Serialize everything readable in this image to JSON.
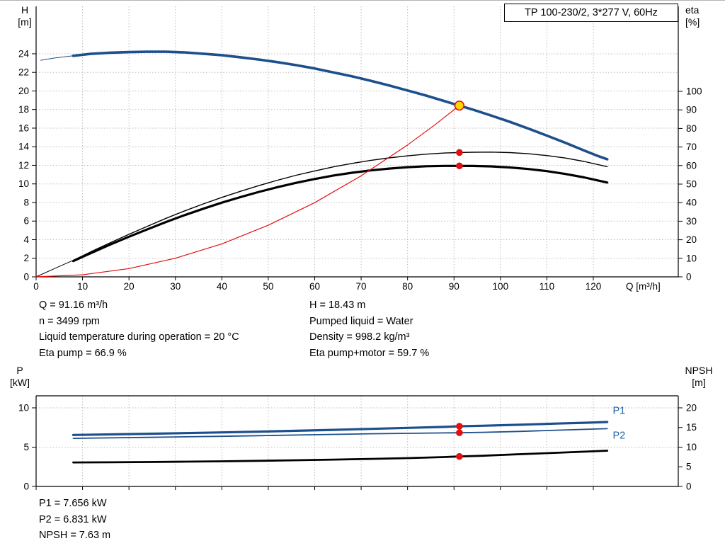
{
  "title": "TP 100-230/2, 3*277 V, 60Hz",
  "info": {
    "left": [
      "Q = 91.16 m³/h",
      "n = 3499 rpm",
      "Liquid temperature during operation = 20 °C",
      "Eta pump = 66.9 %"
    ],
    "right": [
      "H = 18.43 m",
      "Pumped liquid = Water",
      "Density = 998.2 kg/m³",
      "Eta pump+motor = 59.7 %"
    ],
    "bottom": [
      "P1 = 7.656 kW",
      "P2 = 6.831 kW",
      "NPSH = 7.63 m"
    ]
  },
  "colors": {
    "curve_blue": "#1c4f8c",
    "curve_black": "#000000",
    "curve_red": "#e01010",
    "marker_yellow": "#ffd500",
    "grid": "#bdbdbd",
    "axis": "#000000",
    "label_blue": "#2565a8"
  },
  "chart_data": [
    {
      "type": "line",
      "title": "TP 100-230/2, 3*277 V, 60Hz",
      "x_axis": {
        "label": "Q [m³/h]",
        "min": 0,
        "max": 138.3,
        "ticks": [
          0,
          10,
          20,
          30,
          40,
          50,
          60,
          70,
          80,
          90,
          100,
          110,
          120
        ],
        "show_tick_labels": true,
        "grid": true
      },
      "y_left": {
        "name": "H",
        "unit": "[m]",
        "min": 0,
        "max": 29.1,
        "ticks": [
          0,
          2,
          4,
          6,
          8,
          10,
          12,
          14,
          16,
          18,
          20,
          22,
          24
        ],
        "grid": true
      },
      "y_right": {
        "name": "eta",
        "unit": "[%]",
        "min": 0,
        "max": 145.8,
        "ticks": [
          0,
          10,
          20,
          30,
          40,
          50,
          60,
          70,
          80,
          90,
          100
        ]
      },
      "operating_point": {
        "Q": 91.16,
        "H": 18.43,
        "eta_pump": 66.9,
        "eta_pump_motor": 59.7
      },
      "series": [
        {
          "name": "QH curve lead-in",
          "axis": "left",
          "color": "#1c4f8c",
          "width": 1,
          "points": [
            [
              1,
              23.3
            ],
            [
              4,
              23.55
            ],
            [
              8,
              23.78
            ]
          ]
        },
        {
          "name": "QH curve",
          "axis": "left",
          "color": "#1c4f8c",
          "width": 3.6,
          "points": [
            [
              8,
              23.78
            ],
            [
              12,
              24.0
            ],
            [
              16,
              24.12
            ],
            [
              20,
              24.18
            ],
            [
              24,
              24.22
            ],
            [
              28,
              24.22
            ],
            [
              32,
              24.15
            ],
            [
              36,
              24.0
            ],
            [
              40,
              23.85
            ],
            [
              44,
              23.62
            ],
            [
              48,
              23.38
            ],
            [
              52,
              23.1
            ],
            [
              56,
              22.78
            ],
            [
              60,
              22.42
            ],
            [
              64,
              22.0
            ],
            [
              68,
              21.58
            ],
            [
              72,
              21.1
            ],
            [
              76,
              20.6
            ],
            [
              80,
              20.05
            ],
            [
              84,
              19.5
            ],
            [
              88,
              18.9
            ],
            [
              91.16,
              18.43
            ],
            [
              94,
              18.0
            ],
            [
              98,
              17.35
            ],
            [
              102,
              16.68
            ],
            [
              106,
              15.95
            ],
            [
              110,
              15.2
            ],
            [
              114,
              14.42
            ],
            [
              118,
              13.6
            ],
            [
              121,
              13.0
            ],
            [
              123,
              12.65
            ]
          ]
        },
        {
          "name": "Eta lead-in",
          "axis": "left",
          "color": "#000000",
          "width": 1,
          "points": [
            [
              0,
              0
            ],
            [
              4,
              0.9
            ],
            [
              8,
              1.78
            ]
          ]
        },
        {
          "name": "Eta pump",
          "axis": "left",
          "color": "#000000",
          "width": 1.4,
          "points": [
            [
              8,
              1.78
            ],
            [
              12,
              2.75
            ],
            [
              16,
              3.68
            ],
            [
              20,
              4.58
            ],
            [
              24,
              5.45
            ],
            [
              28,
              6.3
            ],
            [
              32,
              7.1
            ],
            [
              36,
              7.85
            ],
            [
              40,
              8.55
            ],
            [
              44,
              9.2
            ],
            [
              48,
              9.82
            ],
            [
              52,
              10.4
            ],
            [
              56,
              10.93
            ],
            [
              60,
              11.4
            ],
            [
              64,
              11.83
            ],
            [
              68,
              12.2
            ],
            [
              72,
              12.52
            ],
            [
              76,
              12.8
            ],
            [
              80,
              13.02
            ],
            [
              84,
              13.2
            ],
            [
              88,
              13.32
            ],
            [
              91.16,
              13.38
            ],
            [
              94,
              13.41
            ],
            [
              98,
              13.42
            ],
            [
              102,
              13.37
            ],
            [
              106,
              13.25
            ],
            [
              110,
              13.05
            ],
            [
              114,
              12.78
            ],
            [
              118,
              12.42
            ],
            [
              123,
              11.85
            ]
          ]
        },
        {
          "name": "Eta pump+motor",
          "axis": "left",
          "color": "#000000",
          "width": 3.2,
          "points": [
            [
              8,
              1.7
            ],
            [
              12,
              2.6
            ],
            [
              16,
              3.48
            ],
            [
              20,
              4.32
            ],
            [
              24,
              5.12
            ],
            [
              28,
              5.9
            ],
            [
              32,
              6.64
            ],
            [
              36,
              7.33
            ],
            [
              40,
              7.98
            ],
            [
              44,
              8.58
            ],
            [
              48,
              9.14
            ],
            [
              52,
              9.65
            ],
            [
              56,
              10.12
            ],
            [
              60,
              10.53
            ],
            [
              64,
              10.9
            ],
            [
              68,
              11.2
            ],
            [
              72,
              11.45
            ],
            [
              76,
              11.65
            ],
            [
              80,
              11.8
            ],
            [
              84,
              11.9
            ],
            [
              88,
              11.94
            ],
            [
              91.16,
              11.94
            ],
            [
              94,
              11.93
            ],
            [
              98,
              11.88
            ],
            [
              102,
              11.77
            ],
            [
              106,
              11.6
            ],
            [
              110,
              11.37
            ],
            [
              114,
              11.07
            ],
            [
              118,
              10.7
            ],
            [
              123,
              10.15
            ]
          ]
        },
        {
          "name": "Operating curve",
          "axis": "left",
          "color": "#e01010",
          "width": 1.2,
          "points": [
            [
              0,
              0
            ],
            [
              10,
              0.22
            ],
            [
              20,
              0.89
            ],
            [
              30,
              2.0
            ],
            [
              40,
              3.55
            ],
            [
              50,
              5.55
            ],
            [
              60,
              7.98
            ],
            [
              70,
              10.87
            ],
            [
              80,
              14.19
            ],
            [
              86,
              16.4
            ],
            [
              91.16,
              18.43
            ]
          ]
        }
      ],
      "markers": [
        {
          "q": 91.16,
          "v": 13.38,
          "axis": "left",
          "style": "dot"
        },
        {
          "q": 91.16,
          "v": 11.94,
          "axis": "left",
          "style": "dot"
        },
        {
          "q": 91.16,
          "v": 18.43,
          "axis": "left",
          "style": "operating-point"
        }
      ],
      "labels": []
    },
    {
      "type": "line",
      "title": "",
      "x_axis": {
        "label": "",
        "min": 0,
        "max": 138.3,
        "ticks": [
          0,
          10,
          20,
          30,
          40,
          50,
          60,
          70,
          80,
          90,
          100,
          110,
          120
        ],
        "show_tick_labels": false,
        "grid": true
      },
      "y_left": {
        "name": "P",
        "unit": "[kW]",
        "min": 0,
        "max": 11.53,
        "ticks": [
          0,
          5,
          10
        ],
        "grid": true
      },
      "y_right": {
        "name": "NPSH",
        "unit": "[m]",
        "min": 0,
        "max": 23.06,
        "ticks": [
          0,
          5,
          10,
          15,
          20
        ]
      },
      "operating_point": {
        "Q": 91.16,
        "P1": 7.656,
        "P2": 6.831,
        "NPSH": 7.63
      },
      "series": [
        {
          "name": "P1",
          "axis": "left",
          "color": "#1c4f8c",
          "width": 3.2,
          "points": [
            [
              8,
              6.55
            ],
            [
              16,
              6.62
            ],
            [
              24,
              6.7
            ],
            [
              32,
              6.78
            ],
            [
              40,
              6.87
            ],
            [
              48,
              6.97
            ],
            [
              56,
              7.08
            ],
            [
              64,
              7.2
            ],
            [
              72,
              7.32
            ],
            [
              80,
              7.45
            ],
            [
              88,
              7.58
            ],
            [
              91.16,
              7.656
            ],
            [
              96,
              7.72
            ],
            [
              104,
              7.85
            ],
            [
              112,
              8.0
            ],
            [
              118,
              8.1
            ],
            [
              123,
              8.2
            ]
          ]
        },
        {
          "name": "P2",
          "axis": "left",
          "color": "#1c4f8c",
          "width": 1.8,
          "points": [
            [
              8,
              6.12
            ],
            [
              16,
              6.18
            ],
            [
              24,
              6.24
            ],
            [
              32,
              6.31
            ],
            [
              40,
              6.38
            ],
            [
              48,
              6.46
            ],
            [
              56,
              6.54
            ],
            [
              64,
              6.62
            ],
            [
              72,
              6.7
            ],
            [
              80,
              6.76
            ],
            [
              88,
              6.81
            ],
            [
              91.16,
              6.831
            ],
            [
              96,
              6.88
            ],
            [
              104,
              7.0
            ],
            [
              112,
              7.15
            ],
            [
              118,
              7.26
            ],
            [
              123,
              7.35
            ]
          ]
        },
        {
          "name": "NPSH",
          "axis": "right",
          "color": "#000000",
          "width": 2.8,
          "points": [
            [
              8,
              6.1
            ],
            [
              16,
              6.15
            ],
            [
              24,
              6.22
            ],
            [
              32,
              6.3
            ],
            [
              40,
              6.4
            ],
            [
              48,
              6.52
            ],
            [
              56,
              6.66
            ],
            [
              64,
              6.82
            ],
            [
              72,
              7.0
            ],
            [
              80,
              7.2
            ],
            [
              88,
              7.48
            ],
            [
              91.16,
              7.63
            ],
            [
              96,
              7.8
            ],
            [
              104,
              8.2
            ],
            [
              112,
              8.55
            ],
            [
              118,
              8.85
            ],
            [
              123,
              9.1
            ]
          ]
        }
      ],
      "markers": [
        {
          "q": 91.16,
          "v": 7.656,
          "axis": "left",
          "style": "dot"
        },
        {
          "q": 91.16,
          "v": 6.831,
          "axis": "left",
          "style": "dot"
        },
        {
          "q": 91.16,
          "v": 7.63,
          "axis": "right",
          "style": "dot"
        }
      ],
      "labels": [
        {
          "text": "P1",
          "q": 124.2,
          "v": 9.7,
          "axis": "left"
        },
        {
          "text": "P2",
          "q": 124.2,
          "v": 6.55,
          "axis": "left"
        }
      ]
    }
  ]
}
